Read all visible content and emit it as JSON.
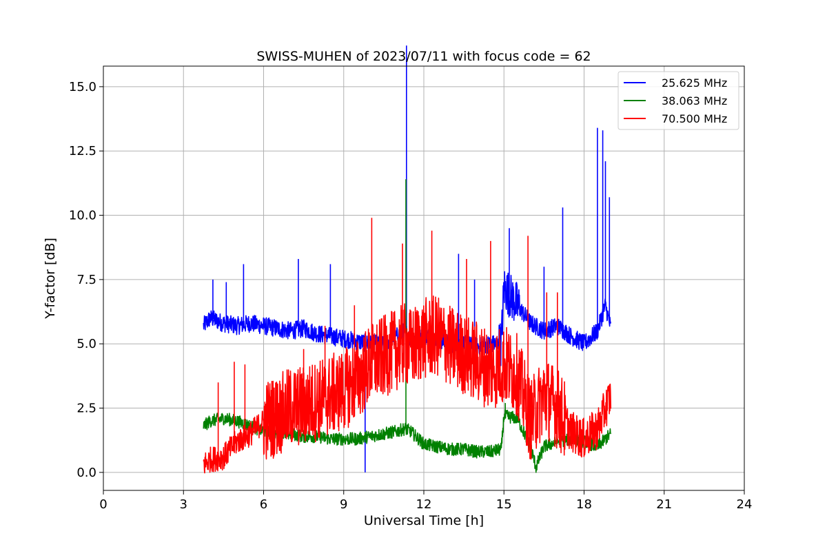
{
  "chart_data": {
    "type": "line",
    "title": "SWISS-MUHEN of 2023/07/11 with focus code = 62",
    "xlabel": "Universal Time [h]",
    "ylabel": "Y-factor [dB]",
    "xlim": [
      0,
      24
    ],
    "ylim": [
      -0.7,
      15.8
    ],
    "xticks": [
      0,
      3,
      6,
      9,
      12,
      15,
      18,
      21,
      24
    ],
    "xtick_labels": [
      "0",
      "3",
      "6",
      "9",
      "12",
      "15",
      "18",
      "21",
      "24"
    ],
    "yticks": [
      0.0,
      2.5,
      5.0,
      7.5,
      10.0,
      12.5,
      15.0
    ],
    "ytick_labels": [
      "0.0",
      "2.5",
      "5.0",
      "7.5",
      "10.0",
      "12.5",
      "15.0"
    ],
    "grid": true,
    "legend_position": "top-right",
    "series": [
      {
        "name": "25.625 MHz",
        "color": "#0000ff",
        "x": [
          3.75,
          4.0,
          4.5,
          5.0,
          5.5,
          6.0,
          6.5,
          7.0,
          7.5,
          8.0,
          8.5,
          9.0,
          9.5,
          10.0,
          10.5,
          11.0,
          11.3,
          11.5,
          12.0,
          12.5,
          13.0,
          13.5,
          14.0,
          14.5,
          14.9,
          15.0,
          15.5,
          16.0,
          16.5,
          17.0,
          17.5,
          18.0,
          18.5,
          18.8,
          19.0
        ],
        "y": [
          5.7,
          6.0,
          5.8,
          5.7,
          5.8,
          5.7,
          5.6,
          5.5,
          5.6,
          5.4,
          5.3,
          5.2,
          5.1,
          5.0,
          5.0,
          5.3,
          5.5,
          5.2,
          5.3,
          5.2,
          5.0,
          5.0,
          4.9,
          5.0,
          5.0,
          7.2,
          6.5,
          5.8,
          5.5,
          5.7,
          5.3,
          5.0,
          5.5,
          6.5,
          5.6
        ],
        "spikes": [
          [
            4.1,
            7.5
          ],
          [
            4.6,
            7.4
          ],
          [
            5.25,
            8.1
          ],
          [
            7.3,
            8.3
          ],
          [
            8.5,
            8.1
          ],
          [
            9.8,
            0.0
          ],
          [
            11.35,
            16.6
          ],
          [
            13.3,
            8.5
          ],
          [
            13.9,
            7.5
          ],
          [
            15.2,
            9.5
          ],
          [
            16.5,
            8.0
          ],
          [
            17.2,
            10.3
          ],
          [
            18.5,
            13.4
          ],
          [
            18.7,
            13.3
          ],
          [
            18.8,
            12.1
          ],
          [
            18.95,
            10.7
          ]
        ]
      },
      {
        "name": "38.063 MHz",
        "color": "#008000",
        "x": [
          3.75,
          4.0,
          4.5,
          5.0,
          5.5,
          6.0,
          6.5,
          7.0,
          7.5,
          8.0,
          8.5,
          9.0,
          9.5,
          10.0,
          10.5,
          11.0,
          11.3,
          11.5,
          12.0,
          12.5,
          13.0,
          13.5,
          14.0,
          14.5,
          14.9,
          15.0,
          15.5,
          16.0,
          16.2,
          16.5,
          17.0,
          17.5,
          18.0,
          18.5,
          19.0
        ],
        "y": [
          1.8,
          2.0,
          2.1,
          2.0,
          1.8,
          1.6,
          1.5,
          1.5,
          1.4,
          1.4,
          1.3,
          1.3,
          1.3,
          1.4,
          1.5,
          1.6,
          1.7,
          1.6,
          1.1,
          1.0,
          0.9,
          0.9,
          0.8,
          0.8,
          0.9,
          2.2,
          2.1,
          1.0,
          0.2,
          1.0,
          1.2,
          1.3,
          1.2,
          1.0,
          1.5
        ],
        "spikes": [
          [
            11.33,
            11.4
          ],
          [
            15.05,
            2.7
          ]
        ]
      },
      {
        "name": "70.500 MHz",
        "color": "#ff0000",
        "x": [
          3.75,
          4.0,
          4.5,
          5.0,
          5.5,
          6.0,
          6.5,
          7.0,
          7.5,
          8.0,
          8.5,
          9.0,
          9.5,
          10.0,
          10.5,
          11.0,
          11.3,
          11.5,
          12.0,
          12.5,
          13.0,
          13.5,
          14.0,
          14.5,
          15.0,
          15.5,
          16.0,
          16.5,
          17.0,
          17.5,
          18.0,
          18.5,
          19.0
        ],
        "y": [
          0.3,
          0.5,
          0.6,
          1.2,
          1.5,
          2.0,
          2.2,
          2.5,
          2.6,
          2.8,
          3.0,
          3.2,
          3.6,
          4.2,
          4.5,
          4.8,
          5.0,
          4.8,
          5.2,
          5.3,
          4.9,
          4.6,
          4.3,
          4.0,
          4.2,
          3.8,
          2.0,
          3.0,
          2.5,
          1.6,
          1.3,
          1.7,
          3.0
        ],
        "spikes": [
          [
            4.3,
            3.5
          ],
          [
            4.9,
            4.3
          ],
          [
            5.3,
            4.2
          ],
          [
            7.5,
            4.8
          ],
          [
            8.3,
            5.7
          ],
          [
            9.4,
            6.5
          ],
          [
            10.05,
            9.9
          ],
          [
            11.2,
            8.9
          ],
          [
            12.3,
            9.4
          ],
          [
            13.6,
            8.3
          ],
          [
            14.5,
            9.0
          ],
          [
            15.9,
            9.2
          ],
          [
            16.6,
            7.0
          ],
          [
            17.0,
            7.0
          ]
        ]
      }
    ]
  }
}
